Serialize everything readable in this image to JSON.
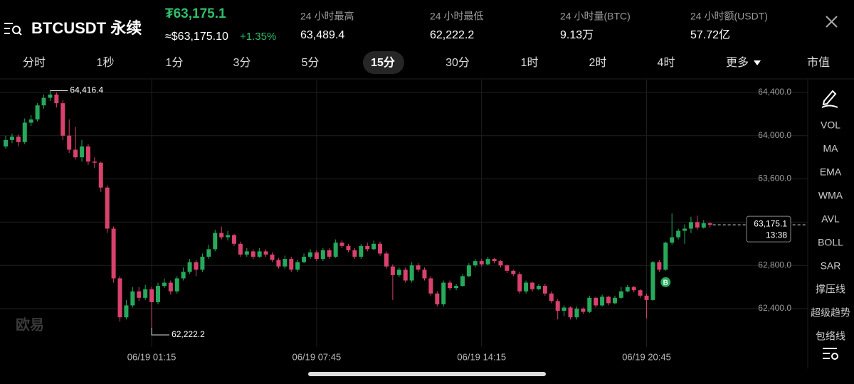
{
  "header": {
    "symbol": "BTCUSDT 永续",
    "price": "₮63,175.1",
    "usd_price": "≈$63,175.10",
    "change": "+1.35%",
    "stats": [
      {
        "label": "24 小时最高",
        "value": "63,489.4"
      },
      {
        "label": "24 小时最低",
        "value": "62,222.2"
      },
      {
        "label": "24 小时量(BTC)",
        "value": "9.13万"
      },
      {
        "label": "24 小时额(USDT)",
        "value": "57.72亿"
      }
    ]
  },
  "tabs": {
    "items": [
      "分时",
      "1秒",
      "1分",
      "3分",
      "5分",
      "15分",
      "30分",
      "1时",
      "2时",
      "4时",
      "更多",
      "市值"
    ],
    "selected_index": 5
  },
  "indicators": [
    "VOL",
    "MA",
    "EMA",
    "WMA",
    "AVL",
    "BOLL",
    "SAR",
    "撑压线",
    "超级趋势",
    "包络线"
  ],
  "watermark": "欧易",
  "chart_data": {
    "type": "candlestick",
    "up_color": "#27a95b",
    "down_color": "#d8426c",
    "grid": true,
    "ylim": [
      62045,
      64518
    ],
    "yticks": [
      {
        "value": 62400,
        "label": "62,400.0"
      },
      {
        "value": 62800,
        "label": "62,800.0"
      },
      {
        "value": 63200,
        "label": "63,200.0"
      },
      {
        "value": 63600,
        "label": "63,600.0"
      },
      {
        "value": 64000,
        "label": "64,000.0"
      },
      {
        "value": 64400,
        "label": "64,400.0"
      }
    ],
    "xlim": [
      -0.9,
      126.4
    ],
    "xticks": [
      {
        "value": 23,
        "label": "06/19 01:15"
      },
      {
        "value": 49,
        "label": "06/19 07:45"
      },
      {
        "value": 75,
        "label": "06/19 14:15"
      },
      {
        "value": 101,
        "label": "06/19 20:45"
      }
    ],
    "ohlc": [
      [
        63900,
        64000,
        63880,
        63960
      ],
      [
        63960,
        64020,
        63930,
        63990
      ],
      [
        63990,
        64010,
        63900,
        63940
      ],
      [
        63940,
        64160,
        63920,
        64120
      ],
      [
        64120,
        64190,
        64090,
        64150
      ],
      [
        64150,
        64300,
        64130,
        64280
      ],
      [
        64280,
        64380,
        64250,
        64350
      ],
      [
        64350,
        64416.4,
        64320,
        64380
      ],
      [
        64380,
        64400,
        64260,
        64300
      ],
      [
        64300,
        64330,
        63960,
        64000
      ],
      [
        64000,
        64150,
        63840,
        63870
      ],
      [
        63870,
        64080,
        63780,
        63800
      ],
      [
        63800,
        63960,
        63760,
        63900
      ],
      [
        63900,
        63920,
        63730,
        63760
      ],
      [
        63760,
        63800,
        63700,
        63750
      ],
      [
        63750,
        63760,
        63480,
        63520
      ],
      [
        63520,
        63540,
        63100,
        63140
      ],
      [
        63140,
        63160,
        62640,
        62680
      ],
      [
        62680,
        62700,
        62280,
        62320
      ],
      [
        62320,
        62480,
        62300,
        62430
      ],
      [
        62430,
        62600,
        62410,
        62560
      ],
      [
        62560,
        62600,
        62470,
        62500
      ],
      [
        62500,
        62620,
        62480,
        62580
      ],
      [
        62580,
        62600,
        62222.2,
        62460
      ],
      [
        62460,
        62640,
        62440,
        62610
      ],
      [
        62610,
        62680,
        62590,
        62640
      ],
      [
        62640,
        62660,
        62530,
        62560
      ],
      [
        62560,
        62700,
        62540,
        62680
      ],
      [
        62680,
        62780,
        62660,
        62740
      ],
      [
        62740,
        62860,
        62720,
        62830
      ],
      [
        62830,
        62850,
        62700,
        62760
      ],
      [
        62760,
        62910,
        62740,
        62880
      ],
      [
        62880,
        62990,
        62860,
        62950
      ],
      [
        62950,
        63130,
        62930,
        63100
      ],
      [
        63100,
        63160,
        63040,
        63060
      ],
      [
        63060,
        63120,
        63030,
        63080
      ],
      [
        63080,
        63090,
        62980,
        63000
      ],
      [
        63000,
        63020,
        62880,
        62900
      ],
      [
        62900,
        62960,
        62880,
        62930
      ],
      [
        62930,
        62950,
        62860,
        62880
      ],
      [
        62880,
        62960,
        62870,
        62930
      ],
      [
        62930,
        62950,
        62880,
        62900
      ],
      [
        62900,
        62920,
        62830,
        62850
      ],
      [
        62850,
        62870,
        62770,
        62790
      ],
      [
        62790,
        62890,
        62770,
        62860
      ],
      [
        62860,
        62880,
        62740,
        62760
      ],
      [
        62760,
        62850,
        62740,
        62830
      ],
      [
        62830,
        62910,
        62820,
        62880
      ],
      [
        62880,
        62950,
        62860,
        62920
      ],
      [
        62920,
        62940,
        62840,
        62860
      ],
      [
        62860,
        62960,
        62840,
        62940
      ],
      [
        62940,
        62960,
        62860,
        62880
      ],
      [
        62880,
        63040,
        62870,
        63010
      ],
      [
        63010,
        63030,
        62960,
        62980
      ],
      [
        62980,
        63000,
        62920,
        62940
      ],
      [
        62940,
        62960,
        62860,
        62880
      ],
      [
        62880,
        63000,
        62860,
        62980
      ],
      [
        62980,
        63010,
        62930,
        62950
      ],
      [
        62950,
        63030,
        62940,
        63000
      ],
      [
        63000,
        63020,
        62890,
        62910
      ],
      [
        62910,
        62930,
        62770,
        62790
      ],
      [
        62790,
        62810,
        62480,
        62710
      ],
      [
        62710,
        62780,
        62690,
        62760
      ],
      [
        62760,
        62780,
        62640,
        62660
      ],
      [
        62660,
        62830,
        62640,
        62800
      ],
      [
        62800,
        62820,
        62740,
        62760
      ],
      [
        62760,
        62780,
        62660,
        62680
      ],
      [
        62680,
        62700,
        62520,
        62540
      ],
      [
        62540,
        62560,
        62420,
        62440
      ],
      [
        62440,
        62660,
        62420,
        62640
      ],
      [
        62640,
        62660,
        62570,
        62590
      ],
      [
        62590,
        62630,
        62570,
        62610
      ],
      [
        62610,
        62720,
        62600,
        62700
      ],
      [
        62700,
        62820,
        62690,
        62800
      ],
      [
        62800,
        62860,
        62780,
        62840
      ],
      [
        62840,
        62860,
        62790,
        62810
      ],
      [
        62810,
        62880,
        62800,
        62860
      ],
      [
        62860,
        62870,
        62820,
        62840
      ],
      [
        62840,
        62850,
        62780,
        62800
      ],
      [
        62800,
        62810,
        62730,
        62750
      ],
      [
        62750,
        62760,
        62700,
        62720
      ],
      [
        62720,
        62740,
        62540,
        62560
      ],
      [
        62560,
        62660,
        62540,
        62640
      ],
      [
        62640,
        62650,
        62560,
        62580
      ],
      [
        62580,
        62630,
        62570,
        62610
      ],
      [
        62610,
        62630,
        62520,
        62540
      ],
      [
        62540,
        62560,
        62450,
        62470
      ],
      [
        62470,
        62490,
        62300,
        62380
      ],
      [
        62380,
        62430,
        62330,
        62410
      ],
      [
        62410,
        62420,
        62300,
        62320
      ],
      [
        62320,
        62420,
        62300,
        62400
      ],
      [
        62400,
        62410,
        62350,
        62370
      ],
      [
        62370,
        62520,
        62360,
        62500
      ],
      [
        62500,
        62510,
        62410,
        62430
      ],
      [
        62430,
        62530,
        62420,
        62510
      ],
      [
        62510,
        62520,
        62430,
        62450
      ],
      [
        62450,
        62520,
        62440,
        62500
      ],
      [
        62500,
        62600,
        62490,
        62560
      ],
      [
        62560,
        62620,
        62550,
        62600
      ],
      [
        62600,
        62610,
        62550,
        62570
      ],
      [
        62570,
        62580,
        62500,
        62520
      ],
      [
        62520,
        62540,
        62310,
        62480
      ],
      [
        62480,
        62840,
        62470,
        62830
      ],
      [
        62830,
        62850,
        62740,
        62760
      ],
      [
        62760,
        63020,
        62750,
        63010
      ],
      [
        63010,
        63280,
        62990,
        63060
      ],
      [
        63060,
        63140,
        63040,
        63120
      ],
      [
        63120,
        63180,
        63000,
        63140
      ],
      [
        63140,
        63250,
        63100,
        63200
      ],
      [
        63200,
        63260,
        63130,
        63150
      ],
      [
        63150,
        63220,
        63140,
        63190
      ],
      [
        63190,
        63200,
        63150,
        63175.1
      ]
    ],
    "annotations": [
      {
        "value": 64416.4,
        "label": "64,416.4"
      },
      {
        "value": 62222.2,
        "label": "62,222.2"
      }
    ],
    "last_price": {
      "value": 63175.1,
      "label": "63,175.1"
    },
    "countdown": "13:38",
    "markers": [
      {
        "index": 104,
        "label": "B"
      }
    ]
  }
}
